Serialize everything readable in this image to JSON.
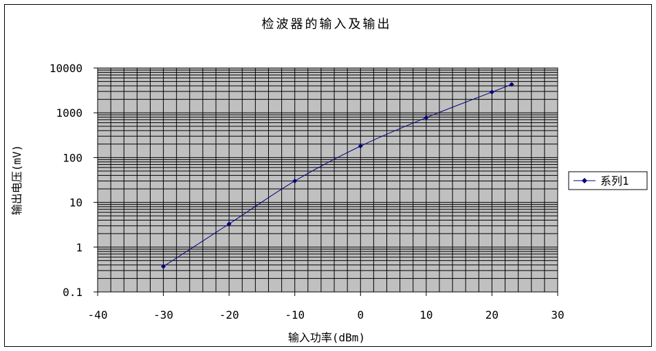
{
  "chart_data": {
    "type": "line",
    "title": "检波器的输入及输出",
    "xlabel": "输入功率(dBm)",
    "ylabel": "输出电压(mV)",
    "x": [
      -30,
      -20,
      -10,
      0,
      10,
      20,
      23
    ],
    "series": [
      {
        "name": "系列1",
        "values": [
          0.37,
          3.3,
          30,
          180,
          780,
          2900,
          4300
        ],
        "color": "#000080"
      }
    ],
    "xlim": [
      -40,
      30
    ],
    "ylim": [
      0.1,
      10000
    ],
    "yscale": "log",
    "xticks": [
      "-40",
      "-30",
      "-20",
      "-10",
      "0",
      "10",
      "20",
      "30"
    ],
    "yticks": [
      "0.1",
      "1",
      "10",
      "100",
      "1000",
      "10000"
    ],
    "grid": true,
    "legend": "right",
    "plot_background": "#c0c0c0"
  }
}
